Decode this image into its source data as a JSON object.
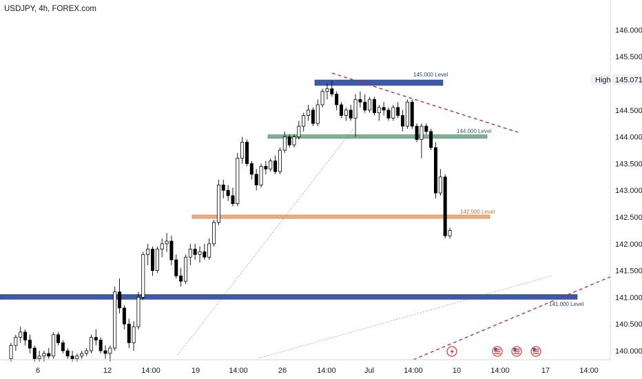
{
  "header": {
    "title": "USDJPY, 4h, FOREX.com"
  },
  "price_axis": {
    "labels": [
      "146.000",
      "145.500",
      "145.071",
      "144.500",
      "144.000",
      "143.500",
      "143.000",
      "142.500",
      "142.000",
      "141.500",
      "141.000",
      "140.500",
      "140.000"
    ],
    "high_label": "High",
    "high_value": "145.071"
  },
  "time_axis": {
    "labels": [
      "6",
      "12",
      "14:00",
      "19",
      "14:00",
      "26",
      "14:00",
      "Jul",
      "14:00",
      "10",
      "14:00",
      "17",
      "14:00"
    ]
  },
  "levels": {
    "l145": "145.000 Level",
    "l144": "144.000 Level",
    "l1425": "142.500 Level",
    "l141": "141.000 Level"
  },
  "colors": {
    "bull": "#ffffff",
    "bear": "#000000",
    "blue_level": "#3d5aa8",
    "green_level": "#5e9e7a",
    "orange_level": "#e5a06b",
    "trend_red": "#b3204d",
    "axis_bg": "#ffffff"
  },
  "icons": [
    "lightning-icon",
    "us-flag-icon",
    "us-flag-icon",
    "us-flag-icon"
  ],
  "chart_data": {
    "type": "candlestick",
    "symbol": "USDJPY",
    "interval": "4h",
    "ylim": [
      139.9,
      146.45
    ],
    "y_ticks": [
      140.0,
      140.5,
      141.0,
      141.5,
      142.0,
      142.5,
      143.0,
      143.5,
      144.0,
      144.5,
      145.0,
      145.5,
      146.0
    ],
    "levels": [
      145.0,
      144.0,
      142.5,
      141.0
    ],
    "high": 145.071,
    "ohlc": [
      [
        139.85,
        140.15,
        139.8,
        140.1
      ],
      [
        140.1,
        140.3,
        140.0,
        140.25
      ],
      [
        140.25,
        140.45,
        140.15,
        140.35
      ],
      [
        140.35,
        140.4,
        140.1,
        140.2
      ],
      [
        140.2,
        140.3,
        139.95,
        140.05
      ],
      [
        140.05,
        140.1,
        139.8,
        139.85
      ],
      [
        139.85,
        140.0,
        139.8,
        139.9
      ],
      [
        139.9,
        140.0,
        139.8,
        139.95
      ],
      [
        139.95,
        140.05,
        139.85,
        139.9
      ],
      [
        139.9,
        140.35,
        139.85,
        140.3
      ],
      [
        140.3,
        140.35,
        140.1,
        140.15
      ],
      [
        140.15,
        140.2,
        139.95,
        140.0
      ],
      [
        140.0,
        140.05,
        139.85,
        139.9
      ],
      [
        139.9,
        140.0,
        139.8,
        139.85
      ],
      [
        139.85,
        139.95,
        139.8,
        139.9
      ],
      [
        139.9,
        140.0,
        139.85,
        139.95
      ],
      [
        139.95,
        140.05,
        139.9,
        140.0
      ],
      [
        140.0,
        140.3,
        139.95,
        140.25
      ],
      [
        140.25,
        140.4,
        140.1,
        140.2
      ],
      [
        140.2,
        140.25,
        139.95,
        140.0
      ],
      [
        140.0,
        140.1,
        139.85,
        139.95
      ],
      [
        139.95,
        140.1,
        139.8,
        140.05
      ],
      [
        140.05,
        141.2,
        140.0,
        141.1
      ],
      [
        141.1,
        141.35,
        140.7,
        140.8
      ],
      [
        140.8,
        140.85,
        140.4,
        140.5
      ],
      [
        140.5,
        140.6,
        140.05,
        140.15
      ],
      [
        140.15,
        140.55,
        140.0,
        140.45
      ],
      [
        140.45,
        141.1,
        140.4,
        141.0
      ],
      [
        141.0,
        141.85,
        140.95,
        141.8
      ],
      [
        141.8,
        142.0,
        141.6,
        141.9
      ],
      [
        141.9,
        141.95,
        141.4,
        141.5
      ],
      [
        141.5,
        141.95,
        141.45,
        141.9
      ],
      [
        141.9,
        142.1,
        141.75,
        142.0
      ],
      [
        142.0,
        142.2,
        141.85,
        142.05
      ],
      [
        142.05,
        142.15,
        141.6,
        141.7
      ],
      [
        141.7,
        141.8,
        141.35,
        141.4
      ],
      [
        141.4,
        141.55,
        141.2,
        141.3
      ],
      [
        141.3,
        141.8,
        141.25,
        141.75
      ],
      [
        141.75,
        142.0,
        141.6,
        141.9
      ],
      [
        141.9,
        142.0,
        141.7,
        141.8
      ],
      [
        141.8,
        141.95,
        141.65,
        141.85
      ],
      [
        141.85,
        142.0,
        141.7,
        141.75
      ],
      [
        141.75,
        142.1,
        141.7,
        142.0
      ],
      [
        142.0,
        142.45,
        141.95,
        142.4
      ],
      [
        142.4,
        143.2,
        142.35,
        143.1
      ],
      [
        143.1,
        143.2,
        142.85,
        143.0
      ],
      [
        143.0,
        143.1,
        142.8,
        142.9
      ],
      [
        142.9,
        143.05,
        142.7,
        142.75
      ],
      [
        142.75,
        143.7,
        142.7,
        143.6
      ],
      [
        143.6,
        144.0,
        143.5,
        143.9
      ],
      [
        143.9,
        143.95,
        143.45,
        143.5
      ],
      [
        143.5,
        143.55,
        143.2,
        143.3
      ],
      [
        143.3,
        143.4,
        143.0,
        143.1
      ],
      [
        143.1,
        143.5,
        143.05,
        143.45
      ],
      [
        143.45,
        143.55,
        143.3,
        143.4
      ],
      [
        143.4,
        143.6,
        143.35,
        143.55
      ],
      [
        143.55,
        143.65,
        143.3,
        143.35
      ],
      [
        143.35,
        143.8,
        143.3,
        143.75
      ],
      [
        143.75,
        144.1,
        143.7,
        144.0
      ],
      [
        144.0,
        144.05,
        143.8,
        143.85
      ],
      [
        143.85,
        144.05,
        143.8,
        144.0
      ],
      [
        144.0,
        144.3,
        143.95,
        144.2
      ],
      [
        144.2,
        144.45,
        144.1,
        144.4
      ],
      [
        144.4,
        144.6,
        144.3,
        144.5
      ],
      [
        144.5,
        144.55,
        144.2,
        144.25
      ],
      [
        144.25,
        144.7,
        144.2,
        144.6
      ],
      [
        144.6,
        144.9,
        144.55,
        144.85
      ],
      [
        144.85,
        145.0,
        144.7,
        144.9
      ],
      [
        144.9,
        145.05,
        144.75,
        144.8
      ],
      [
        144.8,
        144.85,
        144.5,
        144.6
      ],
      [
        144.6,
        144.65,
        144.35,
        144.4
      ],
      [
        144.4,
        144.55,
        144.3,
        144.5
      ],
      [
        144.5,
        144.6,
        144.3,
        144.35
      ],
      [
        144.35,
        144.8,
        144.0,
        144.7
      ],
      [
        144.7,
        144.85,
        144.55,
        144.65
      ],
      [
        144.65,
        144.8,
        144.45,
        144.5
      ],
      [
        144.5,
        144.75,
        144.45,
        144.7
      ],
      [
        144.7,
        144.75,
        144.4,
        144.45
      ],
      [
        144.45,
        144.6,
        144.3,
        144.55
      ],
      [
        144.55,
        144.65,
        144.4,
        144.5
      ],
      [
        144.5,
        144.55,
        144.3,
        144.35
      ],
      [
        144.35,
        144.6,
        144.3,
        144.55
      ],
      [
        144.55,
        144.65,
        144.35,
        144.4
      ],
      [
        144.4,
        144.5,
        144.1,
        144.2
      ],
      [
        144.2,
        144.7,
        144.15,
        144.65
      ],
      [
        144.65,
        144.7,
        144.15,
        144.2
      ],
      [
        144.2,
        144.25,
        143.9,
        143.95
      ],
      [
        143.95,
        144.25,
        143.6,
        144.2
      ],
      [
        144.2,
        144.25,
        144.05,
        144.1
      ],
      [
        144.1,
        144.15,
        143.75,
        143.8
      ],
      [
        143.8,
        143.9,
        142.85,
        142.95
      ],
      [
        142.95,
        143.4,
        142.9,
        143.25
      ],
      [
        143.25,
        143.3,
        142.1,
        142.15
      ],
      [
        142.15,
        142.3,
        142.1,
        142.25
      ]
    ]
  }
}
